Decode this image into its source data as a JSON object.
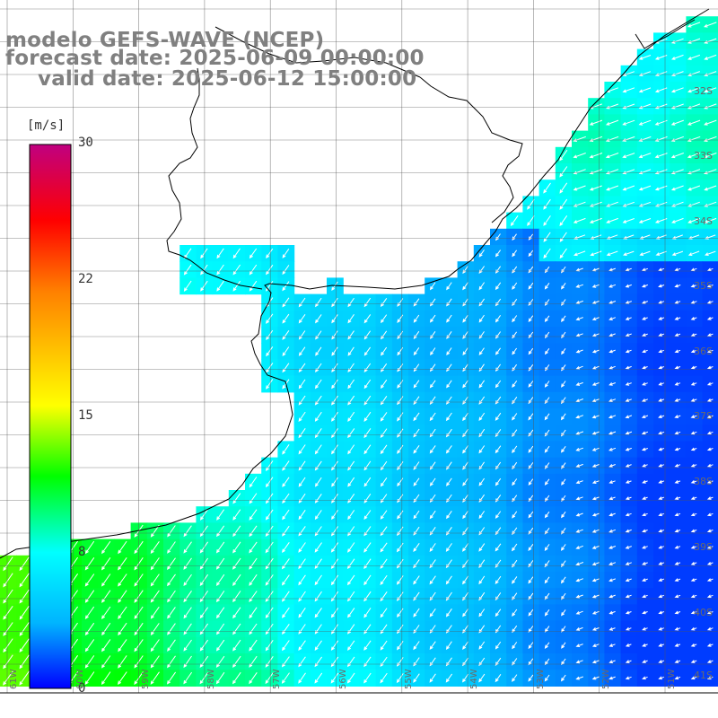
{
  "map": {
    "title_model": "modelo GEFS-WAVE (NCEP)",
    "forecast_date": "forecast date: 2025-06-09 00:00:00",
    "valid_date": "valid date: 2025-06-12 15:00:00",
    "colorbar": {
      "unit": "[m/s]",
      "ticks": [
        "30",
        "22",
        "15",
        "8",
        "0"
      ],
      "range": [
        0,
        30
      ],
      "colors": [
        "#0000ff",
        "#00b4ff",
        "#00ffff",
        "#00ff00",
        "#ffff00",
        "#ff8000",
        "#ff0000",
        "#c00080"
      ]
    },
    "lat_labels": [
      "32S",
      "33S",
      "34S",
      "35S",
      "36S",
      "37S",
      "38S",
      "39S",
      "40S",
      "41S"
    ],
    "lon_labels": [
      "61W",
      "60W",
      "59W",
      "58W",
      "57W",
      "56W",
      "55W",
      "54W",
      "53W",
      "52W",
      "51W"
    ],
    "field_description": "wind speed and direction over ocean"
  }
}
